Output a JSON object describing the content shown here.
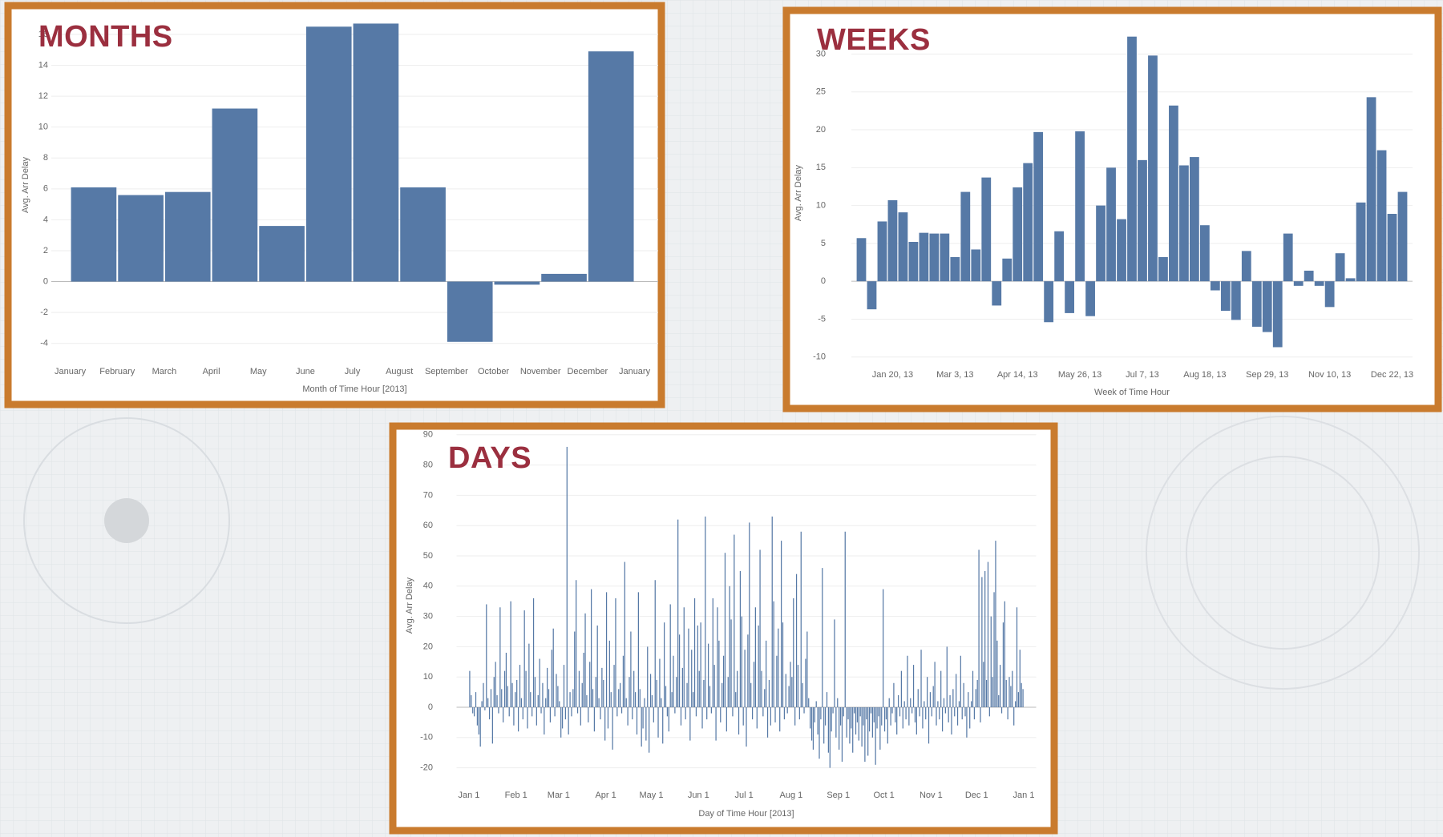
{
  "chart_data": [
    {
      "type": "bar",
      "title": "MONTHS",
      "ylabel": "Avg. Arr Delay",
      "xlabel": "Month of Time Hour [2013]",
      "color": "#5679a6",
      "grid": true,
      "xlim": [
        -0.3,
        12.4
      ],
      "xticks": [
        {
          "value": 0,
          "label": "January"
        },
        {
          "value": 1,
          "label": "February"
        },
        {
          "value": 2,
          "label": "March"
        },
        {
          "value": 3,
          "label": "April"
        },
        {
          "value": 4,
          "label": "May"
        },
        {
          "value": 5,
          "label": "June"
        },
        {
          "value": 6,
          "label": "July"
        },
        {
          "value": 7,
          "label": "August"
        },
        {
          "value": 8,
          "label": "September"
        },
        {
          "value": 9,
          "label": "October"
        },
        {
          "value": 10,
          "label": "November"
        },
        {
          "value": 11,
          "label": "December"
        },
        {
          "value": 12,
          "label": "January"
        }
      ],
      "values": [
        6.1,
        5.6,
        5.8,
        11.2,
        3.6,
        16.5,
        16.7,
        6.1,
        -3.9,
        -0.2,
        0.5,
        14.9
      ],
      "ylim": [
        -5,
        17.5
      ],
      "yticks": [
        -4,
        -2,
        0,
        2,
        4,
        6,
        8,
        10,
        12,
        14,
        16
      ]
    },
    {
      "type": "bar",
      "title": "WEEKS",
      "ylabel": "Avg. Arr Delay",
      "xlabel": "Week of Time Hour",
      "color": "#5679a6",
      "grid": true,
      "categories": [
        null,
        null,
        null,
        "Jan 20, 13",
        null,
        null,
        null,
        null,
        null,
        "Mar 3, 13",
        null,
        null,
        null,
        null,
        null,
        "Apr 14, 13",
        null,
        null,
        null,
        null,
        null,
        "May 26, 13",
        null,
        null,
        null,
        null,
        null,
        "Jul 7, 13",
        null,
        null,
        null,
        null,
        null,
        "Aug 18, 13",
        null,
        null,
        null,
        null,
        null,
        "Sep 29, 13",
        null,
        null,
        null,
        null,
        null,
        "Nov 10, 13",
        null,
        null,
        null,
        null,
        null,
        "Dec 22, 13",
        null
      ],
      "values": [
        5.7,
        -3.7,
        7.9,
        10.7,
        9.1,
        5.2,
        6.4,
        6.3,
        6.3,
        3.2,
        11.8,
        4.2,
        13.7,
        -3.2,
        3.0,
        12.4,
        15.6,
        19.7,
        -5.4,
        6.6,
        -4.2,
        19.8,
        -4.6,
        10.0,
        15.0,
        8.2,
        32.3,
        16.0,
        29.8,
        3.2,
        23.2,
        15.3,
        16.4,
        7.4,
        -1.2,
        -3.9,
        -5.1,
        4.0,
        -6.0,
        -6.7,
        -8.7,
        6.3,
        -0.6,
        1.4,
        -0.6,
        -3.4,
        3.7,
        0.4,
        10.4,
        24.3,
        17.3,
        8.9,
        11.8
      ],
      "ylim": [
        -11.4,
        34.7
      ],
      "yticks": [
        -10,
        -5,
        0,
        5,
        10,
        15,
        20,
        25,
        30
      ]
    },
    {
      "type": "bar",
      "title": "DAYS",
      "ylabel": "Avg. Arr Delay",
      "xlabel": "Day of Time Hour [2013]",
      "color": "#5679a6",
      "grid": true,
      "xlim": [
        -5,
        370
      ],
      "xticks": [
        {
          "value": 0,
          "label": "Jan 1"
        },
        {
          "value": 31,
          "label": "Feb 1"
        },
        {
          "value": 59,
          "label": "Mar 1"
        },
        {
          "value": 90,
          "label": "Apr 1"
        },
        {
          "value": 120,
          "label": "May 1"
        },
        {
          "value": 151,
          "label": "Jun 1"
        },
        {
          "value": 181,
          "label": "Jul 1"
        },
        {
          "value": 212,
          "label": "Aug 1"
        },
        {
          "value": 243,
          "label": "Sep 1"
        },
        {
          "value": 273,
          "label": "Oct 1"
        },
        {
          "value": 304,
          "label": "Nov 1"
        },
        {
          "value": 334,
          "label": "Dec 1"
        },
        {
          "value": 365,
          "label": "Jan 1"
        }
      ],
      "values": [
        12,
        4,
        -2,
        -3,
        5,
        -6,
        -9,
        -13,
        2,
        8,
        -1,
        34,
        3,
        -4,
        6,
        -12,
        10,
        15,
        4,
        -2,
        33,
        6,
        -5,
        12,
        18,
        7,
        -3,
        35,
        8,
        -6,
        5,
        9,
        -8,
        14,
        3,
        -4,
        32,
        12,
        -7,
        21,
        5,
        -3,
        36,
        10,
        -6,
        4,
        16,
        -2,
        8,
        -9,
        3,
        13,
        6,
        -5,
        19,
        26,
        -3,
        11,
        7,
        2,
        -10,
        -7,
        14,
        -4,
        86,
        -9,
        5,
        -3,
        6,
        25,
        42,
        -2,
        12,
        -6,
        8,
        18,
        31,
        4,
        -5,
        15,
        39,
        6,
        -8,
        10,
        27,
        3,
        -4,
        13,
        9,
        -11,
        38,
        -7,
        22,
        5,
        -14,
        14,
        36,
        -3,
        6,
        8,
        -2,
        17,
        48,
        3,
        -6,
        10,
        25,
        -4,
        12,
        5,
        -9,
        38,
        6,
        -13,
        -7,
        3,
        -11,
        20,
        -15,
        11,
        4,
        -5,
        42,
        9,
        -10,
        16,
        3,
        -12,
        28,
        7,
        -3,
        -8,
        34,
        5,
        17,
        -2,
        10,
        62,
        24,
        -6,
        13,
        33,
        -4,
        8,
        26,
        -11,
        19,
        5,
        36,
        -3,
        27,
        12,
        28,
        -7,
        9,
        63,
        -4,
        21,
        7,
        -2,
        36,
        14,
        -11,
        33,
        22,
        -5,
        8,
        17,
        51,
        -8,
        10,
        40,
        29,
        -3,
        57,
        5,
        12,
        -9,
        45,
        30,
        -6,
        19,
        -13,
        24,
        61,
        8,
        -4,
        15,
        33,
        -7,
        27,
        52,
        12,
        -3,
        6,
        22,
        -10,
        9,
        -6,
        63,
        35,
        -5,
        17,
        26,
        -8,
        55,
        28,
        -4,
        11,
        -2,
        7,
        15,
        10,
        36,
        -6,
        44,
        14,
        -4,
        58,
        8,
        -2,
        16,
        25,
        3,
        -7,
        -11,
        -14,
        -5,
        2,
        -9,
        -17,
        -4,
        46,
        -12,
        -6,
        5,
        -15,
        -20,
        -8,
        -2,
        29,
        -10,
        3,
        -14,
        -6,
        -18,
        -3,
        58,
        -10,
        -4,
        -12,
        -7,
        -15,
        -2,
        -9,
        -5,
        -11,
        -3,
        -13,
        -6,
        -18,
        -4,
        -16,
        -8,
        -2,
        -10,
        -5,
        -19,
        -7,
        -3,
        -14,
        -6,
        39,
        -8,
        -4,
        -12,
        3,
        -6,
        -2,
        8,
        -5,
        -9,
        4,
        -3,
        12,
        -7,
        2,
        -4,
        17,
        -6,
        3,
        -2,
        14,
        -5,
        -9,
        6,
        -3,
        19,
        -7,
        2,
        -4,
        10,
        -12,
        5,
        -3,
        7,
        15,
        -6,
        2,
        -4,
        12,
        -8,
        3,
        -2,
        20,
        -5,
        4,
        -9,
        6,
        -3,
        11,
        -6,
        2,
        17,
        -4,
        8,
        -3,
        -10,
        5,
        -7,
        2,
        12,
        -4,
        6,
        9,
        52,
        -5,
        43,
        15,
        45,
        9,
        48,
        -3,
        30,
        10,
        38,
        55,
        22,
        4,
        14,
        -2,
        28,
        35,
        9,
        -4,
        10,
        7,
        12,
        -6,
        2,
        33,
        5,
        19,
        8,
        6
      ],
      "ylim": [
        -24.6,
        91.8
      ],
      "yticks": [
        -20,
        -10,
        0,
        10,
        20,
        30,
        40,
        50,
        60,
        70,
        80,
        90
      ]
    }
  ]
}
